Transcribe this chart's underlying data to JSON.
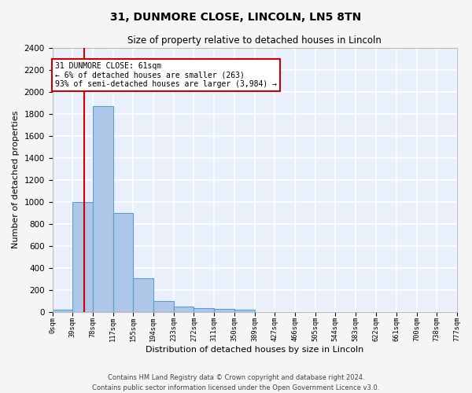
{
  "title1": "31, DUNMORE CLOSE, LINCOLN, LN5 8TN",
  "title2": "Size of property relative to detached houses in Lincoln",
  "xlabel": "Distribution of detached houses by size in Lincoln",
  "ylabel": "Number of detached properties",
  "bar_edges": [
    0,
    39,
    78,
    117,
    155,
    194,
    233,
    272,
    311,
    350,
    389,
    427,
    466,
    505,
    544,
    583,
    622,
    661,
    700,
    738,
    777
  ],
  "bar_heights": [
    20,
    1000,
    1870,
    900,
    305,
    100,
    50,
    35,
    25,
    20,
    0,
    0,
    0,
    0,
    0,
    0,
    0,
    0,
    0,
    0
  ],
  "bar_color": "#aec6e8",
  "bar_edgecolor": "#5a9fd4",
  "bar_linewidth": 0.8,
  "ylim": [
    0,
    2400
  ],
  "yticks": [
    0,
    200,
    400,
    600,
    800,
    1000,
    1200,
    1400,
    1600,
    1800,
    2000,
    2200,
    2400
  ],
  "xtick_labels": [
    "0sqm",
    "39sqm",
    "78sqm",
    "117sqm",
    "155sqm",
    "194sqm",
    "233sqm",
    "272sqm",
    "311sqm",
    "350sqm",
    "389sqm",
    "427sqm",
    "466sqm",
    "505sqm",
    "544sqm",
    "583sqm",
    "622sqm",
    "661sqm",
    "700sqm",
    "738sqm",
    "777sqm"
  ],
  "property_size": 61,
  "annotation_text": "31 DUNMORE CLOSE: 61sqm\n← 6% of detached houses are smaller (263)\n93% of semi-detached houses are larger (3,984) →",
  "annotation_box_color": "#ffffff",
  "annotation_box_edgecolor": "#cc0000",
  "vline_x": 61,
  "vline_color": "#cc0000",
  "bg_color": "#eaf0fb",
  "grid_color": "#ffffff",
  "fig_bg_color": "#f5f5f5",
  "footer1": "Contains HM Land Registry data © Crown copyright and database right 2024.",
  "footer2": "Contains public sector information licensed under the Open Government Licence v3.0."
}
